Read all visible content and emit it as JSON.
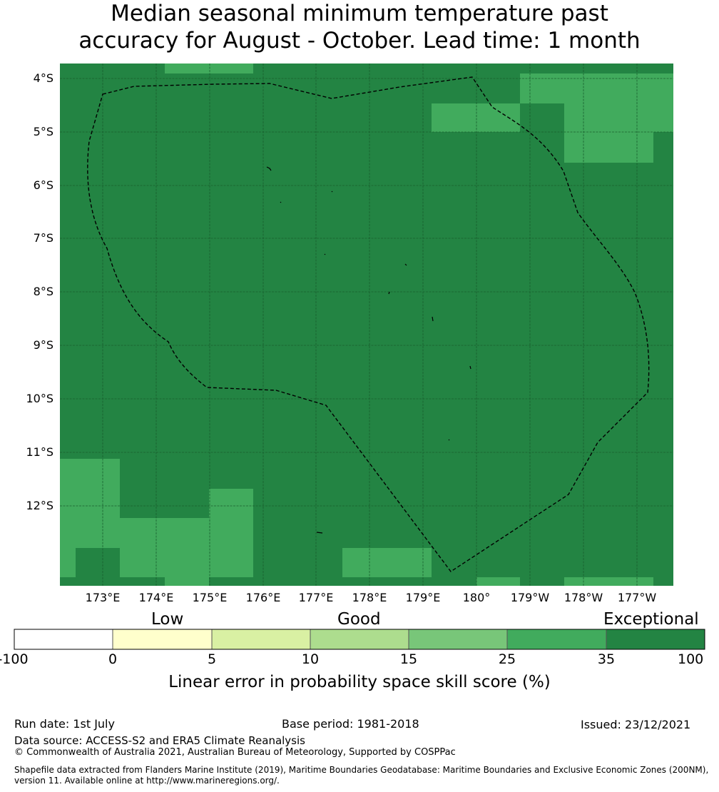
{
  "title": {
    "line1": "Median seasonal minimum temperature past",
    "line2": "accuracy for August - October. Lead time: 1 month"
  },
  "map": {
    "lat_ticks": [
      "4°S",
      "5°S",
      "6°S",
      "7°S",
      "8°S",
      "9°S",
      "10°S",
      "11°S",
      "12°S"
    ],
    "lon_ticks": [
      "173°E",
      "174°E",
      "175°E",
      "176°E",
      "177°E",
      "178°E",
      "179°E",
      "180°",
      "179°W",
      "178°W",
      "177°W"
    ],
    "colors": {
      "exceptional": "#238443",
      "high": "#41ab5d"
    }
  },
  "colorbar": {
    "categories": [
      "Low",
      "Good",
      "Exceptional"
    ],
    "ticks": [
      "-100",
      "0",
      "5",
      "10",
      "15",
      "25",
      "35",
      "100"
    ],
    "colors": [
      "#ffffff",
      "#ffffcc",
      "#d9f0a3",
      "#addd8e",
      "#78c679",
      "#41ab5d",
      "#238443"
    ],
    "label": "Linear error in probability space skill score (%)"
  },
  "footer": {
    "run_date": "Run date: 1st July",
    "base_period": "Base period: 1981-2018",
    "issued": "Issued: 23/12/2021",
    "data_source": "Data source: ACCESS-S2 and ERA5 Climate Reanalysis",
    "copyright": "© Commonwealth of Australia 2021, Australian Bureau of Meteorology, Supported by COSPPac",
    "shapefile": "Shapefile data extracted from Flanders Marine Institute (2019), Maritime Boundaries Geodatabase: Maritime Boundaries and Exclusive Economic Zones (200NM), version 11. Available online at http://www.marineregions.org/."
  }
}
